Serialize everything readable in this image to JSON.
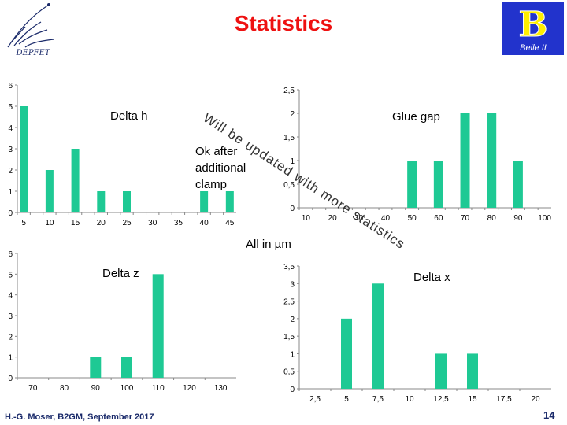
{
  "header": {
    "title": "Statistics"
  },
  "footer": {
    "author": "H.-G. Moser, B2GM, September 2017",
    "page": "14"
  },
  "note": "All in µm",
  "overlay": "Will be updated with more statistics",
  "logos": {
    "left": "desy-style-logo",
    "right": "belle-ii-logo",
    "right_caption": "Belle II",
    "left_caption": "DEPFET"
  },
  "colors": {
    "bar": "#1ec994",
    "title": "#ee1111",
    "footer": "#1a2a6a"
  },
  "chart_data": [
    {
      "type": "bar",
      "title": "",
      "annotations": [
        "Delta h",
        "Ok after",
        "additional",
        "clamp"
      ],
      "categories": [
        "5",
        "",
        "10",
        "",
        "15",
        "",
        "20",
        "",
        "25",
        "",
        "30",
        "",
        "35",
        "",
        "40",
        "",
        "45"
      ],
      "values": [
        5,
        0,
        2,
        0,
        3,
        0,
        1,
        0,
        1,
        0,
        0,
        0,
        0,
        0,
        1,
        0,
        1
      ],
      "yticks": [
        "0",
        "1",
        "2",
        "3",
        "4",
        "5",
        "6"
      ],
      "ylim": [
        0,
        6
      ],
      "grid": false
    },
    {
      "type": "bar",
      "title": "",
      "annotations": [
        "Glue gap"
      ],
      "categories": [
        "10",
        "",
        "20",
        "",
        "30",
        "",
        "40",
        "",
        "50",
        "",
        "60",
        "",
        "70",
        "",
        "80",
        "",
        "90",
        "",
        "100"
      ],
      "values": [
        0,
        0,
        0,
        0,
        0,
        0,
        0,
        0,
        1,
        0,
        1,
        0,
        2,
        0,
        2,
        0,
        1,
        0,
        0
      ],
      "yticks": [
        "0",
        "0,5",
        "1",
        "1,5",
        "2",
        "2,5"
      ],
      "ylim": [
        0,
        2.5
      ],
      "grid": false
    },
    {
      "type": "bar",
      "title": "",
      "annotations": [
        "Delta z"
      ],
      "categories": [
        "70",
        "80",
        "90",
        "100",
        "110",
        "120",
        "130"
      ],
      "values": [
        0,
        0,
        1,
        1,
        5,
        0,
        0
      ],
      "yticks": [
        "0",
        "1",
        "2",
        "3",
        "4",
        "5",
        "6"
      ],
      "ylim": [
        0,
        6
      ],
      "grid": false
    },
    {
      "type": "bar",
      "title": "",
      "annotations": [
        "Delta x"
      ],
      "categories": [
        "2,5",
        "5",
        "7,5",
        "10",
        "12,5",
        "15",
        "17,5",
        "20"
      ],
      "values": [
        0,
        2,
        3,
        0,
        1,
        1,
        0,
        0
      ],
      "yticks": [
        "0",
        "0,5",
        "1",
        "1,5",
        "2",
        "2,5",
        "3",
        "3,5"
      ],
      "ylim": [
        0,
        3.5
      ],
      "grid": false
    }
  ]
}
